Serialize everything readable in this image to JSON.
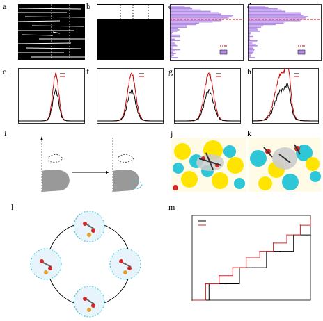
{
  "labels": {
    "a": "a",
    "b": "b",
    "c": "c",
    "d": "d",
    "e": "e",
    "f": "f",
    "g": "g",
    "h": "h",
    "i": "i",
    "j": "j",
    "k": "k",
    "l": "l",
    "m": "m"
  },
  "chart_data": [
    {
      "panel": "m",
      "type": "line",
      "title": "",
      "xlabel": "",
      "ylabel": "",
      "series": [
        {
          "name": "",
          "color": "#000000",
          "x": [
            0,
            1,
            2,
            2.8,
            3.6,
            4.4,
            5.2,
            6.0,
            7.0
          ],
          "y": [
            0,
            1,
            1,
            2,
            2,
            3,
            3,
            4,
            4
          ]
        },
        {
          "name": "",
          "color": "#d62728",
          "x": [
            0,
            0.8,
            1.6,
            2.4,
            3.2,
            4.0,
            4.8,
            5.6,
            6.4,
            7.0
          ],
          "y": [
            0,
            1,
            1.5,
            2,
            2.6,
            3,
            3.5,
            4,
            4.6,
            5
          ]
        }
      ]
    }
  ],
  "colors": {
    "purple": "#b48ee6",
    "red": "#cc0000",
    "black": "#000000",
    "cyan": "#2ec7d8",
    "yellow": "#ffe400"
  }
}
